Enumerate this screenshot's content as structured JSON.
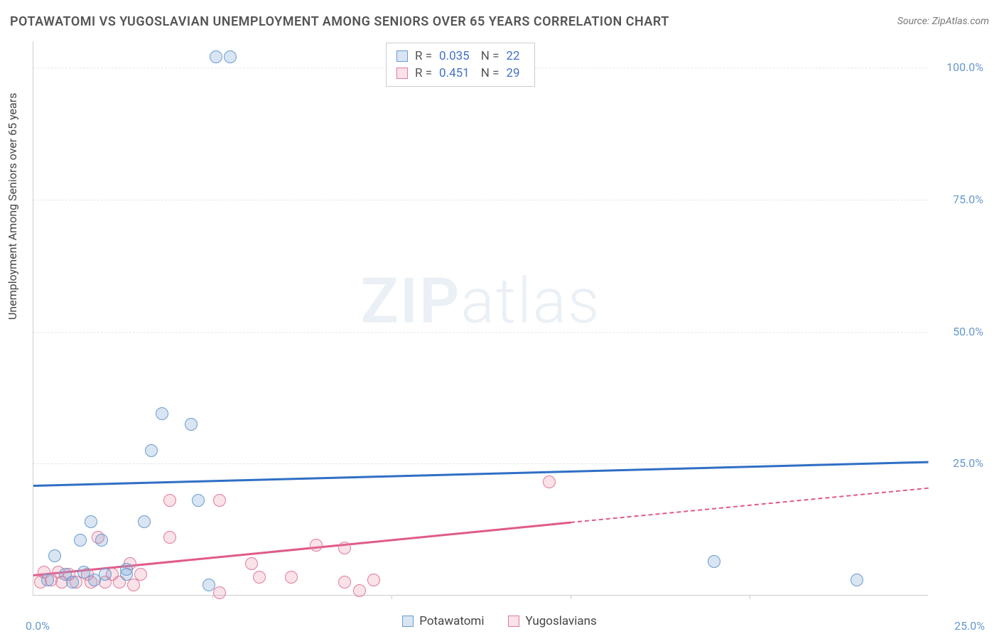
{
  "title": "POTAWATOMI VS YUGOSLAVIAN UNEMPLOYMENT AMONG SENIORS OVER 65 YEARS CORRELATION CHART",
  "source": "Source: ZipAtlas.com",
  "ylabel": "Unemployment Among Seniors over 65 years",
  "watermark_bold": "ZIP",
  "watermark_rest": "atlas",
  "chart": {
    "type": "scatter",
    "xlim": [
      0,
      25
    ],
    "ylim": [
      0,
      105
    ],
    "x_tick_step": 5,
    "y_ticks": [
      25,
      50,
      75,
      100
    ],
    "y_tick_fmt": [
      "25.0%",
      "50.0%",
      "75.0%",
      "100.0%"
    ],
    "x_label_start": "0.0%",
    "x_label_end": "25.0%",
    "background": "#ffffff",
    "grid_color": "#e5e5e5",
    "axis_color": "#cccccc",
    "tick_color": "#6699cc",
    "point_radius": 9,
    "point_border_width": 1.2,
    "series": {
      "potawatomi": {
        "label": "Potawatomi",
        "color_fill": "rgba(120,160,210,0.28)",
        "color_stroke": "#6a9bd1",
        "trend_color": "#2f6fc5",
        "R": "0.035",
        "N": "22",
        "trend_y_at_x0": 21.0,
        "trend_y_at_x25": 25.5,
        "points": [
          {
            "x": 5.1,
            "y": 102.0
          },
          {
            "x": 5.5,
            "y": 102.0
          },
          {
            "x": 3.6,
            "y": 34.5
          },
          {
            "x": 4.4,
            "y": 32.5
          },
          {
            "x": 3.3,
            "y": 27.5
          },
          {
            "x": 4.6,
            "y": 18.0
          },
          {
            "x": 1.6,
            "y": 14.0
          },
          {
            "x": 3.1,
            "y": 14.0
          },
          {
            "x": 1.3,
            "y": 10.5
          },
          {
            "x": 1.9,
            "y": 10.5
          },
          {
            "x": 0.6,
            "y": 7.5
          },
          {
            "x": 2.6,
            "y": 5.0
          },
          {
            "x": 0.9,
            "y": 4.0
          },
          {
            "x": 1.4,
            "y": 4.5
          },
          {
            "x": 2.0,
            "y": 4.0
          },
          {
            "x": 2.6,
            "y": 4.0
          },
          {
            "x": 0.4,
            "y": 3.0
          },
          {
            "x": 1.1,
            "y": 2.5
          },
          {
            "x": 1.7,
            "y": 3.0
          },
          {
            "x": 4.9,
            "y": 2.0
          },
          {
            "x": 19.0,
            "y": 6.5
          },
          {
            "x": 23.0,
            "y": 3.0
          }
        ]
      },
      "yugoslavians": {
        "label": "Yugoslavians",
        "color_fill": "rgba(230,140,165,0.25)",
        "color_stroke": "#e37a9a",
        "trend_color": "#e05a8a",
        "R": "0.451",
        "N": "29",
        "trend_y_at_x0": 4.0,
        "trend_y_at_x15": 14.0,
        "trend_y_at_x25": 20.5,
        "solid_x_end": 15,
        "points": [
          {
            "x": 14.4,
            "y": 21.5
          },
          {
            "x": 3.8,
            "y": 18.0
          },
          {
            "x": 5.2,
            "y": 18.0
          },
          {
            "x": 1.8,
            "y": 11.0
          },
          {
            "x": 3.8,
            "y": 11.0
          },
          {
            "x": 7.9,
            "y": 9.5
          },
          {
            "x": 8.7,
            "y": 9.0
          },
          {
            "x": 2.7,
            "y": 6.0
          },
          {
            "x": 6.1,
            "y": 6.0
          },
          {
            "x": 0.3,
            "y": 4.5
          },
          {
            "x": 0.7,
            "y": 4.5
          },
          {
            "x": 1.0,
            "y": 4.0
          },
          {
            "x": 1.5,
            "y": 4.0
          },
          {
            "x": 2.2,
            "y": 4.0
          },
          {
            "x": 3.0,
            "y": 4.0
          },
          {
            "x": 6.3,
            "y": 3.5
          },
          {
            "x": 7.2,
            "y": 3.5
          },
          {
            "x": 0.2,
            "y": 2.5
          },
          {
            "x": 0.5,
            "y": 3.0
          },
          {
            "x": 0.8,
            "y": 2.5
          },
          {
            "x": 1.2,
            "y": 2.5
          },
          {
            "x": 1.6,
            "y": 2.5
          },
          {
            "x": 2.0,
            "y": 2.5
          },
          {
            "x": 2.4,
            "y": 2.5
          },
          {
            "x": 2.8,
            "y": 2.0
          },
          {
            "x": 8.7,
            "y": 2.5
          },
          {
            "x": 9.5,
            "y": 3.0
          },
          {
            "x": 5.2,
            "y": 0.5
          },
          {
            "x": 9.1,
            "y": 1.0
          }
        ]
      }
    }
  },
  "stats_box": {
    "r_label": "R =",
    "n_label": "N ="
  }
}
